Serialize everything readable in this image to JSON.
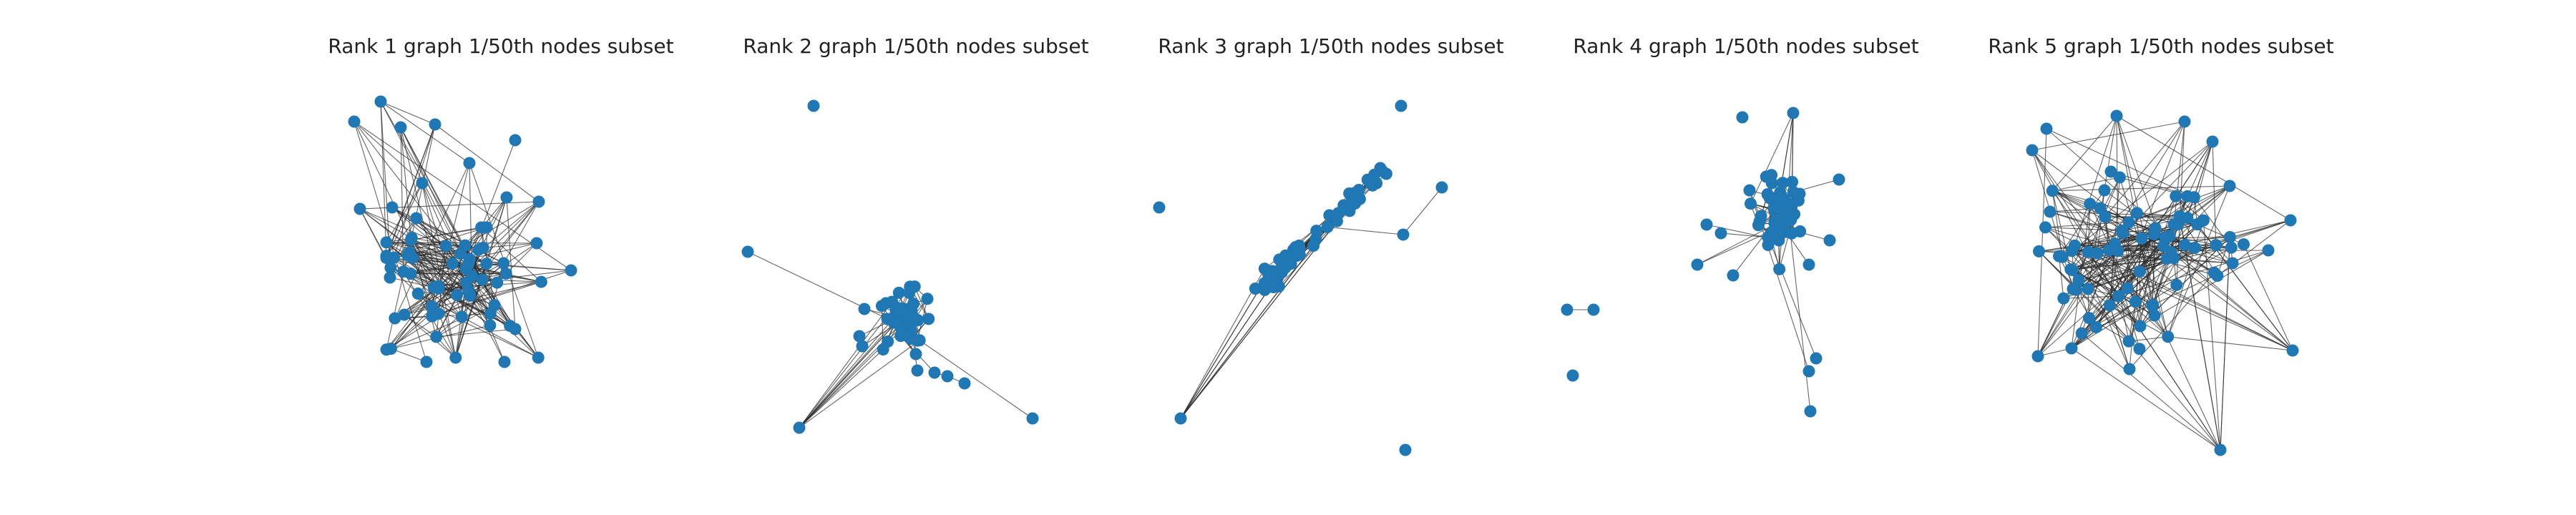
{
  "figure": {
    "panels": [
      {
        "title": "Rank 1 graph 1/50th nodes subset"
      },
      {
        "title": "Rank 2 graph 1/50th nodes subset"
      },
      {
        "title": "Rank 3 graph 1/50th nodes subset"
      },
      {
        "title": "Rank 4 graph 1/50th nodes subset"
      },
      {
        "title": "Rank 5 graph 1/50th nodes subset"
      }
    ]
  },
  "colors": {
    "node": "#1f77b4",
    "edge": "#2b2b2b",
    "title": "#222222",
    "background": "#ffffff"
  }
}
